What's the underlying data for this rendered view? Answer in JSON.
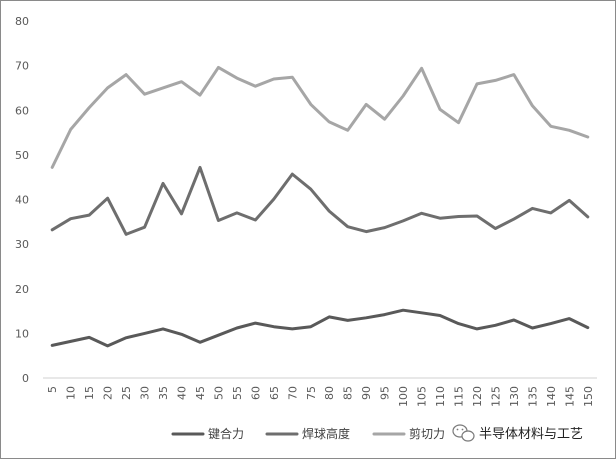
{
  "chart_data": {
    "type": "line",
    "title": "",
    "xlabel": "",
    "ylabel": "",
    "ylim": [
      0,
      80
    ],
    "yticks": [
      0,
      10,
      20,
      30,
      40,
      50,
      60,
      70,
      80
    ],
    "grid": false,
    "legend_position": "bottom",
    "x": [
      5,
      10,
      15,
      20,
      25,
      30,
      35,
      40,
      45,
      50,
      55,
      60,
      65,
      70,
      75,
      80,
      85,
      90,
      95,
      100,
      105,
      110,
      115,
      120,
      125,
      130,
      135,
      140,
      145,
      150
    ],
    "series": [
      {
        "name": "键合力",
        "color": "#595959",
        "values": [
          7.3,
          8.2,
          9.1,
          7.2,
          9.0,
          10.0,
          11.0,
          9.8,
          8.0,
          9.6,
          11.2,
          12.3,
          11.5,
          11.0,
          11.5,
          13.7,
          12.9,
          13.5,
          14.2,
          15.2,
          14.6,
          14.0,
          12.2,
          11.0,
          11.8,
          13.0,
          11.2,
          12.2,
          13.3,
          11.3
        ]
      },
      {
        "name": "焊球高度",
        "color": "#6e6e6e",
        "values": [
          33.2,
          35.7,
          36.5,
          40.3,
          32.2,
          33.8,
          43.6,
          36.8,
          47.2,
          35.3,
          37.0,
          35.4,
          40.1,
          45.7,
          42.3,
          37.4,
          33.9,
          32.8,
          33.7,
          35.2,
          36.9,
          35.8,
          36.2,
          36.3,
          33.5,
          35.6,
          38.0,
          37.0,
          39.8,
          36.1
        ]
      },
      {
        "name": "剪切力",
        "color": "#a6a6a6",
        "values": [
          47.2,
          55.7,
          60.6,
          65.0,
          68.0,
          63.6,
          65.0,
          66.4,
          63.4,
          69.6,
          67.2,
          65.4,
          67.0,
          67.4,
          61.3,
          57.4,
          55.5,
          61.3,
          58.0,
          63.2,
          69.4,
          60.2,
          57.2,
          65.9,
          66.7,
          68.0,
          61.0,
          56.4,
          55.5,
          54.0
        ]
      }
    ]
  },
  "watermark": {
    "icon": "wechat-icon",
    "text": "半导体材料与工艺"
  }
}
